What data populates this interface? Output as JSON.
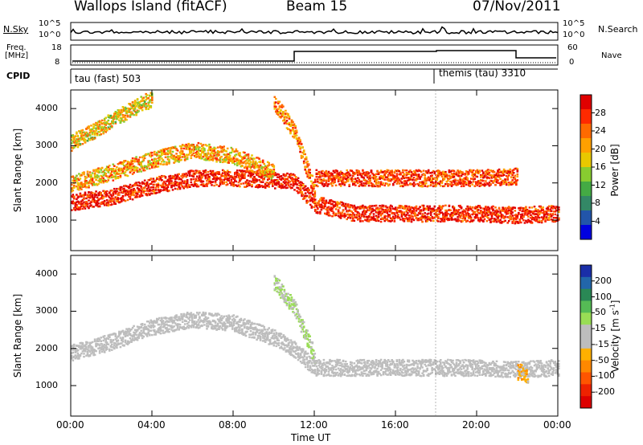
{
  "header": {
    "station": "Wallops Island (fitACF)",
    "beam": "Beam 15",
    "date": "07/Nov/2011"
  },
  "noise_panel": {
    "left_label": "N.Sky",
    "right_label": "N.Search",
    "left_ticks": [
      "10^5",
      "10^0"
    ],
    "right_ticks": [
      "10^5",
      "10^0"
    ]
  },
  "freq_panel": {
    "left_label": "Freq.",
    "left_unit": "[MHz]",
    "right_label": "Nave",
    "left_ticks": [
      "18",
      "8"
    ],
    "right_ticks": [
      "60",
      "0"
    ]
  },
  "cpid_panel": {
    "label": "CPID",
    "modes": [
      {
        "name": "tau (fast) 503",
        "start_hour": 0
      },
      {
        "name": "themis (tau) 3310",
        "start_hour": 18
      }
    ]
  },
  "power_colorbar": {
    "label": "Power [dB]",
    "ticks": [
      "28",
      "24",
      "20",
      "16",
      "12",
      "8",
      "4"
    ],
    "colors": [
      "#e00000",
      "#ff2a00",
      "#ff6a00",
      "#ffa000",
      "#e8c800",
      "#88cc30",
      "#44aa44",
      "#338866",
      "#2255aa",
      "#0000e0"
    ]
  },
  "velocity_colorbar": {
    "label": "Velocity [m s",
    "label_exp": "-1",
    "label_end": "]",
    "ticks": [
      "200",
      "100",
      "50",
      "15",
      "-15",
      "-50",
      "-100",
      "-200"
    ],
    "colors": [
      "#1a2ea8",
      "#2266aa",
      "#2a8855",
      "#55bb55",
      "#99dd55",
      "#bdbdbd",
      "#bdbdbd",
      "#ffb000",
      "#ff8800",
      "#ff5500",
      "#ee2200",
      "#dd0000"
    ]
  },
  "axes": {
    "ylabel": "Slant Range [km]",
    "xlabel": "Time UT",
    "yticks": [
      "4000",
      "3000",
      "2000",
      "1000"
    ],
    "xticks": [
      "00:00",
      "04:00",
      "08:00",
      "12:00",
      "16:00",
      "20:00",
      "00:00"
    ]
  },
  "chart_data": [
    {
      "type": "heatmap",
      "title": "",
      "quantity": "Power [dB]",
      "xlabel": "Time UT",
      "ylabel": "Slant Range [km]",
      "xlim_hours": [
        0,
        24
      ],
      "ylim_km": [
        180,
        4500
      ],
      "clim": [
        0,
        30
      ],
      "bands": [
        {
          "time_hours": [
            0,
            2,
            4,
            6,
            8,
            10,
            11,
            12,
            14,
            16,
            18,
            20,
            22,
            24
          ],
          "range_km": [
            1500,
            1650,
            1950,
            2150,
            2150,
            2100,
            2050,
            1450,
            1200,
            1200,
            1200,
            1200,
            1150,
            1200
          ],
          "approx_power_db": 28
        },
        {
          "time_hours": [
            0,
            2,
            4,
            6,
            8,
            10
          ],
          "range_km": [
            2000,
            2300,
            2650,
            2900,
            2750,
            2300
          ],
          "approx_power_db": 20
        },
        {
          "time_hours": [
            12,
            16,
            20,
            22
          ],
          "range_km": [
            2150,
            2150,
            2150,
            2200
          ],
          "approx_power_db": 26
        },
        {
          "time_hours": [
            0,
            2,
            4
          ],
          "range_km": [
            3100,
            3700,
            4300
          ],
          "approx_power_db": 18
        },
        {
          "time_hours": [
            10,
            11,
            12
          ],
          "range_km": [
            4200,
            3400,
            1800
          ],
          "approx_power_db": 22
        }
      ]
    },
    {
      "type": "heatmap",
      "title": "",
      "quantity": "Velocity [m s-1]",
      "xlabel": "Time UT",
      "ylabel": "Slant Range [km]",
      "xlim_hours": [
        0,
        24
      ],
      "ylim_km": [
        180,
        4500
      ],
      "clim": [
        -200,
        200
      ],
      "bands": [
        {
          "time_hours": [
            0,
            2,
            4,
            6,
            8,
            10,
            11,
            12,
            16,
            20,
            22,
            24
          ],
          "range_km": [
            1900,
            2200,
            2600,
            2800,
            2700,
            2300,
            2000,
            1500,
            1500,
            1500,
            1450,
            1500
          ],
          "approx_velocity_ms": 0
        },
        {
          "time_hours": [
            10,
            11,
            12
          ],
          "range_km": [
            3800,
            3100,
            1800
          ],
          "approx_velocity_ms": 40
        },
        {
          "time_hours": [
            22,
            22.5
          ],
          "range_km": [
            1400,
            1300
          ],
          "approx_velocity_ms": -60
        }
      ]
    }
  ]
}
